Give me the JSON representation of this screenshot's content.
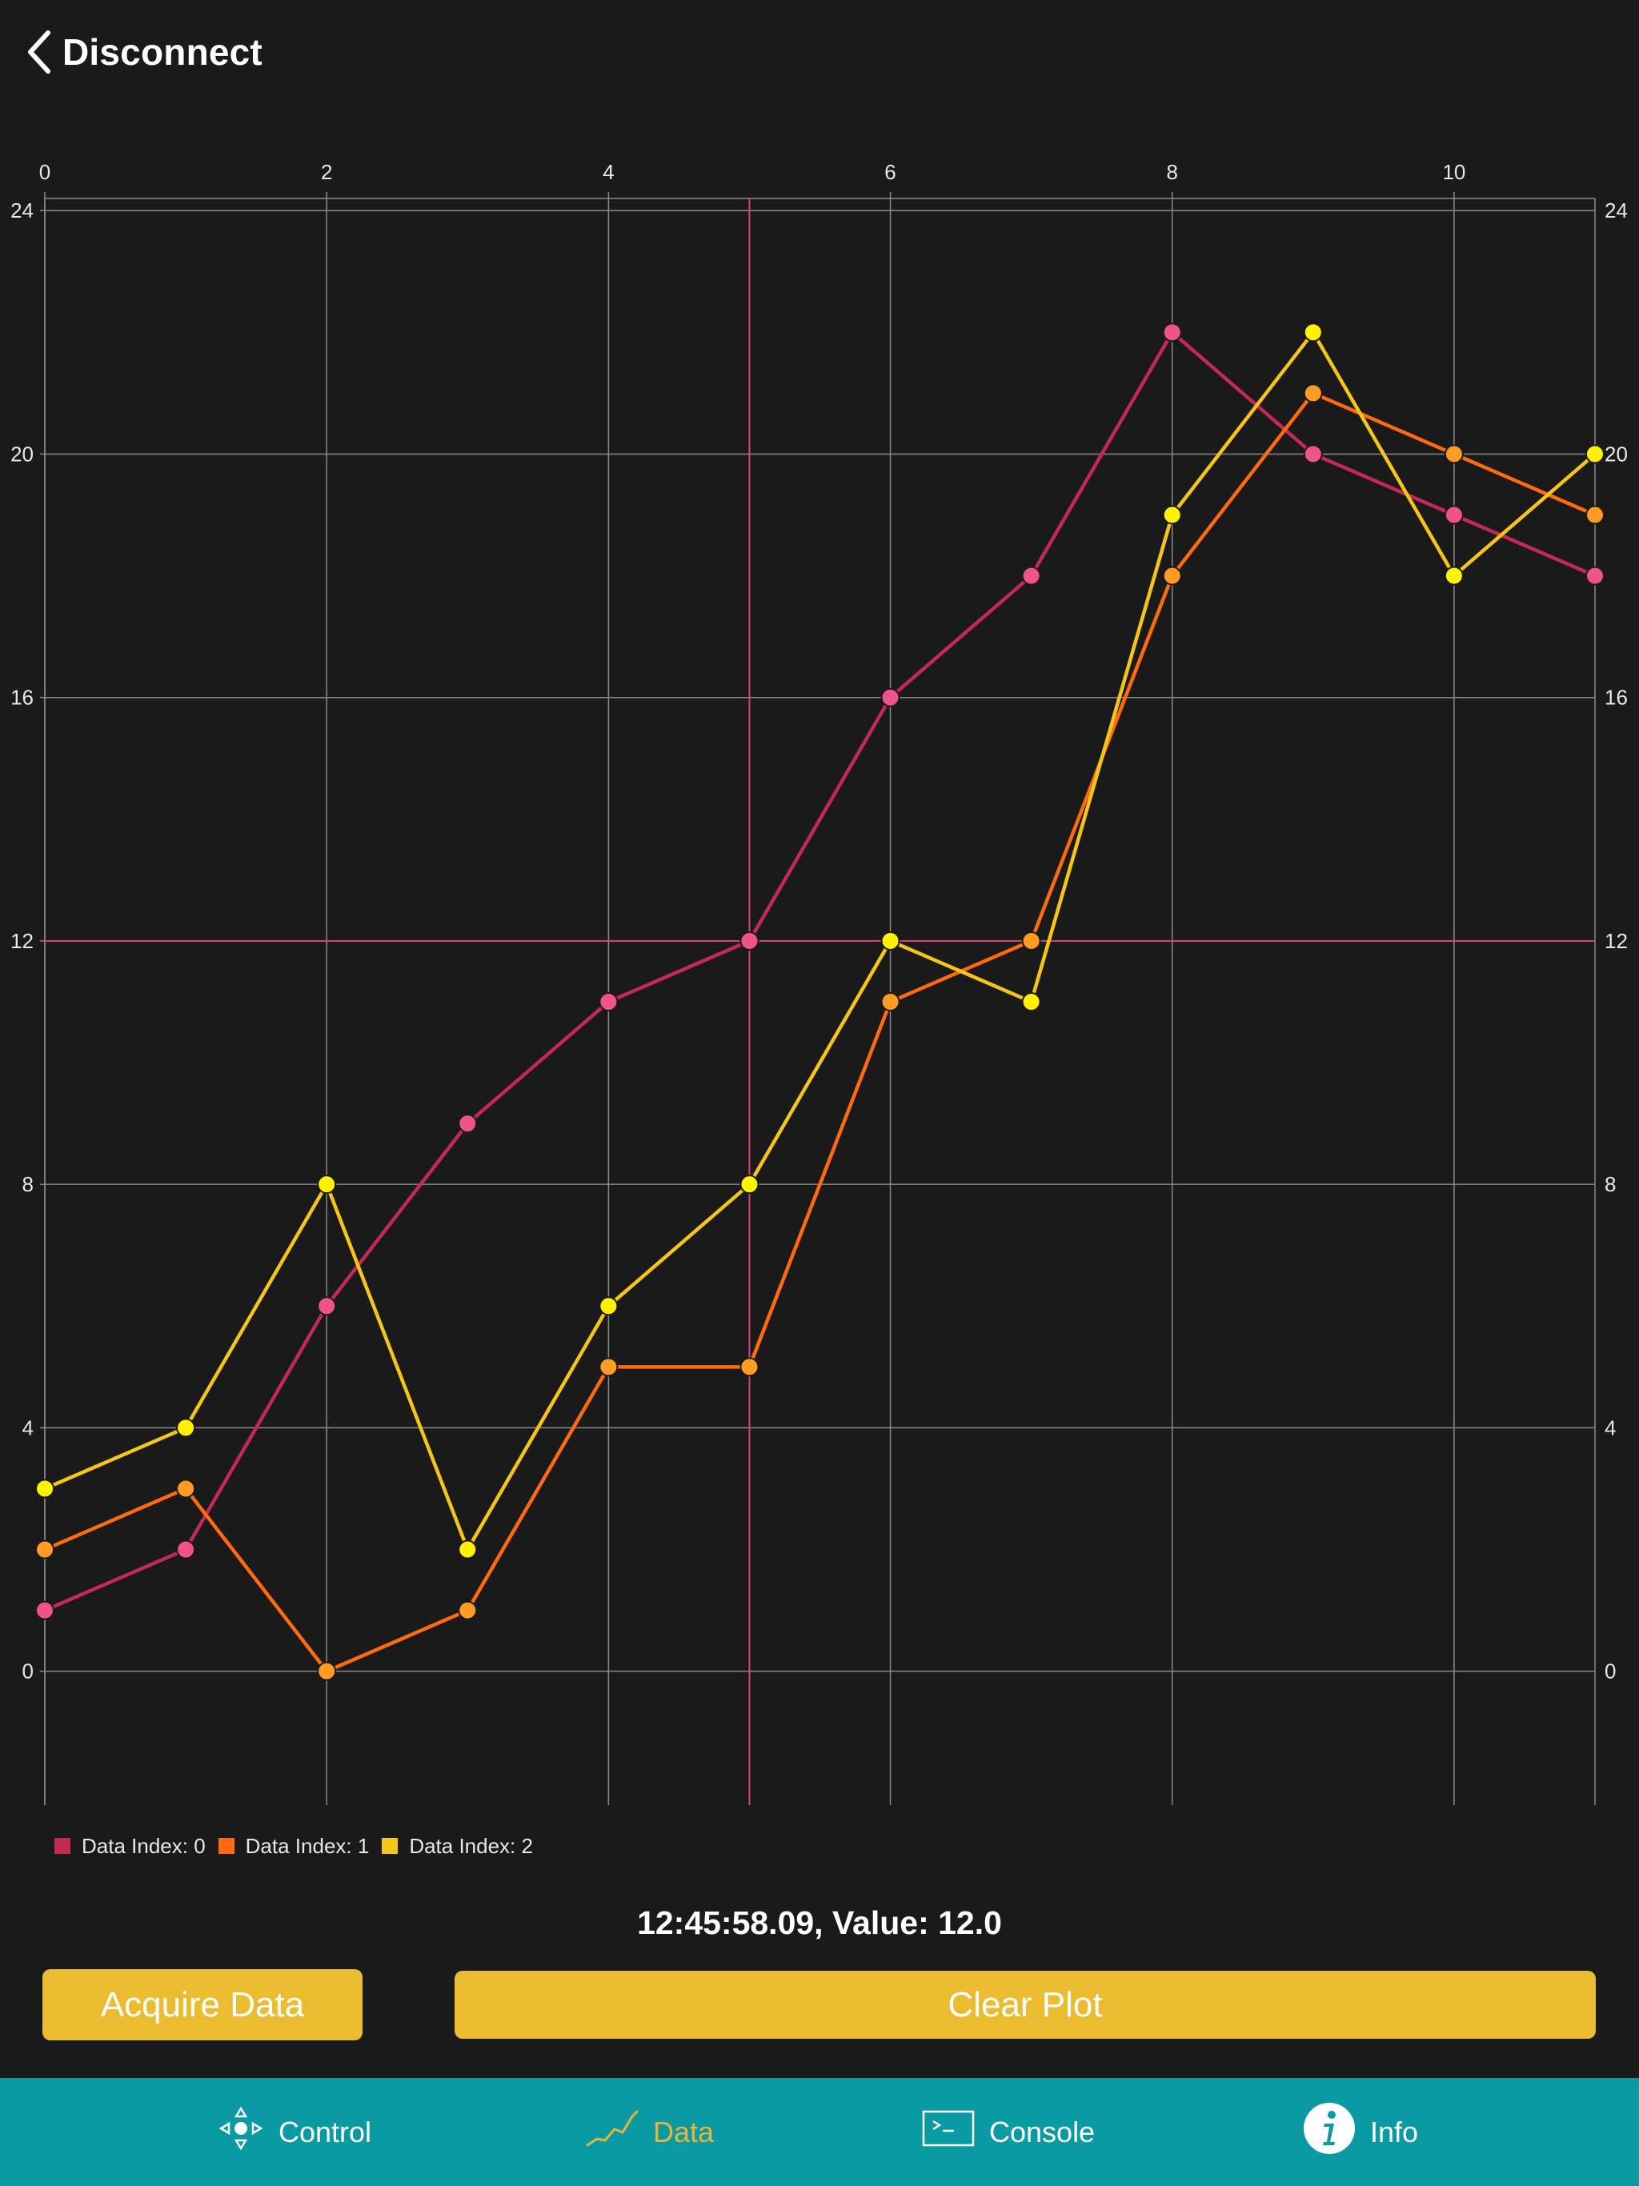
{
  "nav": {
    "back_label": "Disconnect"
  },
  "colors": {
    "background": "#1a1a1a",
    "grid": "#8a8a8a",
    "crosshair": "#d4457a",
    "series0_line": "#c22a55",
    "series0_marker": "#f0528a",
    "series1_line": "#ff6a0f",
    "series1_marker": "#ff9a22",
    "series2_line": "#f5c518",
    "series2_marker": "#fff200",
    "accent": "#ebbb30",
    "tabbar": "#0a9aa4",
    "tab_active": "#e6b53a"
  },
  "chart_data": {
    "type": "line",
    "x": [
      0,
      1,
      2,
      3,
      4,
      5,
      6,
      7,
      8,
      9,
      10,
      11
    ],
    "series": [
      {
        "name": "Data Index: 0",
        "values": [
          1,
          2,
          6,
          9,
          11,
          12,
          16,
          18,
          22,
          20,
          19,
          18
        ]
      },
      {
        "name": "Data Index: 1",
        "values": [
          2,
          3,
          0,
          1,
          5,
          5,
          11,
          12,
          18,
          21,
          20,
          19
        ]
      },
      {
        "name": "Data Index: 2",
        "values": [
          3,
          4,
          8,
          2,
          6,
          8,
          12,
          11,
          19,
          22,
          18,
          20
        ]
      }
    ],
    "xlim": [
      0,
      11
    ],
    "ylim": [
      -2.2,
      24.2
    ],
    "x_ticks": [
      0,
      2,
      4,
      6,
      8,
      10
    ],
    "y_ticks": [
      0,
      4,
      8,
      12,
      16,
      20,
      24
    ],
    "x_tick_labels": [
      "0",
      "2",
      "4",
      "6",
      "8",
      "10"
    ],
    "y_tick_labels": [
      "0",
      "4",
      "8",
      "12",
      "16",
      "20",
      "24"
    ],
    "x_axis_position": "top",
    "y_axis_position": "left and right",
    "grid": true,
    "crosshair": {
      "x": 5,
      "y": 12
    },
    "legend": {
      "placement": "bottom-left",
      "labels": [
        "Data Index: 0",
        "Data Index: 1",
        "Data Index: 2"
      ]
    }
  },
  "readout": {
    "text": "12:45:58.09, Value: 12.0"
  },
  "buttons": {
    "acquire": "Acquire Data",
    "clear": "Clear Plot"
  },
  "tabs": [
    {
      "label": "Control",
      "icon": "control-icon"
    },
    {
      "label": "Data",
      "icon": "data-chart-icon"
    },
    {
      "label": "Console",
      "icon": "console-icon"
    },
    {
      "label": "Info",
      "icon": "info-icon"
    }
  ],
  "active_tab": "Data"
}
